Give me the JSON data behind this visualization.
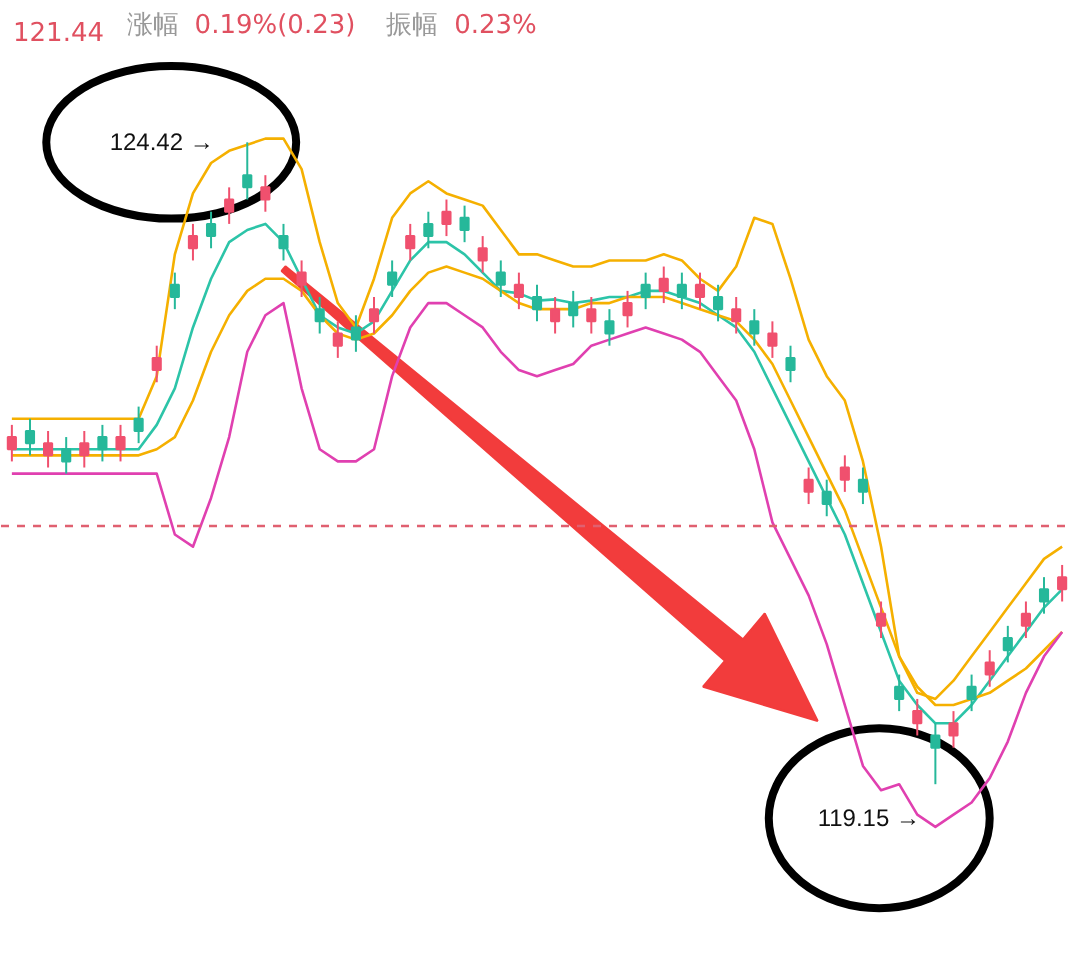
{
  "chart_data": {
    "type": "candlestick",
    "relative": false,
    "categories": [
      null,
      null,
      null,
      null,
      null,
      null,
      null,
      null,
      null,
      null,
      null,
      null,
      null,
      null,
      null,
      null,
      null,
      null,
      null,
      null,
      null,
      null,
      null,
      null,
      null,
      null,
      null,
      null,
      null,
      null,
      null,
      null,
      null,
      null,
      null,
      null,
      null,
      null,
      null,
      null,
      null,
      null,
      null,
      null,
      null,
      null,
      null,
      null,
      null,
      null,
      null,
      null,
      null,
      null,
      null,
      null,
      null,
      null,
      null
    ],
    "ohlc": [
      [
        121.9,
        122.1,
        121.8,
        122.0
      ],
      [
        122.05,
        122.15,
        121.85,
        121.95
      ],
      [
        121.85,
        122.05,
        121.75,
        121.95
      ],
      [
        121.9,
        122.0,
        121.7,
        121.8
      ],
      [
        121.85,
        122.05,
        121.75,
        121.95
      ],
      [
        122.0,
        122.1,
        121.8,
        121.9
      ],
      [
        121.9,
        122.1,
        121.8,
        122.0
      ],
      [
        122.15,
        122.25,
        121.95,
        122.05
      ],
      [
        122.55,
        122.75,
        122.45,
        122.65
      ],
      [
        123.25,
        123.35,
        123.05,
        123.15
      ],
      [
        123.55,
        123.75,
        123.45,
        123.65
      ],
      [
        123.75,
        123.85,
        123.55,
        123.65
      ],
      [
        123.85,
        124.05,
        123.75,
        123.95
      ],
      [
        124.15,
        124.42,
        123.95,
        124.05
      ],
      [
        123.95,
        124.15,
        123.85,
        124.05
      ],
      [
        123.65,
        123.75,
        123.45,
        123.55
      ],
      [
        123.25,
        123.45,
        123.15,
        123.35
      ],
      [
        123.05,
        123.15,
        122.85,
        122.95
      ],
      [
        122.75,
        122.95,
        122.65,
        122.85
      ],
      [
        122.9,
        123.0,
        122.7,
        122.8
      ],
      [
        122.95,
        123.15,
        122.85,
        123.05
      ],
      [
        123.35,
        123.45,
        123.15,
        123.25
      ],
      [
        123.55,
        123.75,
        123.45,
        123.65
      ],
      [
        123.75,
        123.85,
        123.55,
        123.65
      ],
      [
        123.75,
        123.95,
        123.65,
        123.85
      ],
      [
        123.8,
        123.9,
        123.6,
        123.7
      ],
      [
        123.45,
        123.65,
        123.35,
        123.55
      ],
      [
        123.35,
        123.45,
        123.15,
        123.25
      ],
      [
        123.15,
        123.35,
        123.05,
        123.25
      ],
      [
        123.15,
        123.25,
        122.95,
        123.05
      ],
      [
        122.95,
        123.15,
        122.85,
        123.05
      ],
      [
        123.1,
        123.2,
        122.9,
        123.0
      ],
      [
        122.95,
        123.15,
        122.85,
        123.05
      ],
      [
        122.95,
        123.05,
        122.75,
        122.85
      ],
      [
        123.0,
        123.2,
        122.9,
        123.1
      ],
      [
        123.25,
        123.35,
        123.05,
        123.15
      ],
      [
        123.2,
        123.4,
        123.1,
        123.3
      ],
      [
        123.25,
        123.35,
        123.05,
        123.15
      ],
      [
        123.15,
        123.35,
        123.05,
        123.25
      ],
      [
        123.15,
        123.25,
        122.95,
        123.05
      ],
      [
        122.95,
        123.15,
        122.85,
        123.05
      ],
      [
        122.95,
        123.05,
        122.75,
        122.85
      ],
      [
        122.75,
        122.95,
        122.65,
        122.85
      ],
      [
        122.65,
        122.75,
        122.45,
        122.55
      ],
      [
        121.55,
        121.75,
        121.45,
        121.65
      ],
      [
        121.55,
        121.65,
        121.35,
        121.45
      ],
      [
        121.65,
        121.85,
        121.55,
        121.75
      ],
      [
        121.65,
        121.75,
        121.45,
        121.55
      ],
      [
        120.45,
        120.65,
        120.35,
        120.55
      ],
      [
        119.95,
        120.05,
        119.75,
        119.85
      ],
      [
        119.65,
        119.85,
        119.55,
        119.75
      ],
      [
        119.55,
        119.65,
        119.15,
        119.45
      ],
      [
        119.55,
        119.75,
        119.45,
        119.65
      ],
      [
        119.95,
        120.05,
        119.75,
        119.85
      ],
      [
        120.05,
        120.25,
        119.95,
        120.15
      ],
      [
        120.35,
        120.45,
        120.15,
        120.25
      ],
      [
        120.45,
        120.65,
        120.35,
        120.55
      ],
      [
        120.75,
        120.85,
        120.55,
        120.65
      ],
      [
        120.75,
        120.95,
        120.65,
        120.85
      ]
    ],
    "colors": [
      "#f0506e",
      "#26b89a",
      "#f0506e",
      "#26b89a",
      "#f0506e",
      "#26b89a",
      "#f0506e",
      "#26b89a",
      "#f0506e",
      "#26b89a",
      "#f0506e",
      "#26b89a",
      "#f0506e",
      "#26b89a",
      "#f0506e",
      "#26b89a",
      "#f0506e",
      "#26b89a",
      "#f0506e",
      "#26b89a",
      "#f0506e",
      "#26b89a",
      "#f0506e",
      "#26b89a",
      "#f0506e",
      "#26b89a",
      "#f0506e",
      "#26b89a",
      "#f0506e",
      "#26b89a",
      "#f0506e",
      "#26b89a",
      "#f0506e",
      "#26b89a",
      "#f0506e",
      "#26b89a",
      "#f0506e",
      "#26b89a",
      "#f0506e",
      "#26b89a",
      "#f0506e",
      "#26b89a",
      "#f0506e",
      "#26b89a",
      "#f0506e",
      "#26b89a",
      "#f0506e",
      "#26b89a",
      "#f0506e",
      "#26b89a",
      "#f0506e",
      "#26b89a",
      "#f0506e",
      "#26b89a",
      "#f0506e",
      "#26b89a",
      "#f0506e",
      "#26b89a",
      "#f0506e"
    ],
    "series": [
      {
        "type": "line",
        "color": "#f5b000",
        "values": [
          122.15,
          122.15,
          122.15,
          122.15,
          122.15,
          122.15,
          122.15,
          122.15,
          122.5,
          123.5,
          124.0,
          124.25,
          124.35,
          124.4,
          124.45,
          124.45,
          124.2,
          123.6,
          123.1,
          122.9,
          123.3,
          123.8,
          124.0,
          124.1,
          124.0,
          123.95,
          123.9,
          123.7,
          123.5,
          123.5,
          123.45,
          123.4,
          123.4,
          123.45,
          123.45,
          123.45,
          123.5,
          123.45,
          123.3,
          123.2,
          123.4,
          123.8,
          123.75,
          123.3,
          122.8,
          122.5,
          122.3,
          121.8,
          121.1,
          120.2,
          119.9,
          119.85,
          120.0,
          120.2,
          120.4,
          120.6,
          120.8,
          121.0,
          121.1
        ]
      },
      {
        "type": "line",
        "color": "#2cc4a8",
        "values": [
          121.9,
          121.9,
          121.9,
          121.9,
          121.9,
          121.9,
          121.9,
          121.9,
          122.1,
          122.4,
          122.9,
          123.3,
          123.6,
          123.7,
          123.75,
          123.6,
          123.3,
          123.0,
          122.9,
          122.85,
          122.95,
          123.2,
          123.45,
          123.6,
          123.6,
          123.5,
          123.35,
          123.2,
          123.18,
          123.12,
          123.13,
          123.1,
          123.12,
          123.15,
          123.15,
          123.2,
          123.2,
          123.15,
          123.1,
          123.0,
          122.9,
          122.7,
          122.4,
          122.1,
          121.8,
          121.5,
          121.2,
          120.8,
          120.4,
          120.0,
          119.8,
          119.65,
          119.65,
          119.8,
          120.0,
          120.2,
          120.4,
          120.6,
          120.75
        ]
      },
      {
        "type": "line",
        "color": "#f5b000",
        "values": [
          121.85,
          121.85,
          121.85,
          121.85,
          121.85,
          121.85,
          121.85,
          121.85,
          121.9,
          122.0,
          122.3,
          122.7,
          123.0,
          123.2,
          123.3,
          123.3,
          123.2,
          123.0,
          122.85,
          122.8,
          122.85,
          123.0,
          123.2,
          123.35,
          123.4,
          123.35,
          123.3,
          123.2,
          123.1,
          123.05,
          123.05,
          123.05,
          123.1,
          123.1,
          123.15,
          123.15,
          123.15,
          123.1,
          123.05,
          123.0,
          122.95,
          122.8,
          122.6,
          122.3,
          122.0,
          121.7,
          121.4,
          121.0,
          120.6,
          120.2,
          119.95,
          119.8,
          119.8,
          119.85,
          119.9,
          120.0,
          120.1,
          120.25,
          120.4
        ]
      },
      {
        "type": "line",
        "color": "#e040b0",
        "values": [
          121.7,
          121.7,
          121.7,
          121.7,
          121.7,
          121.7,
          121.7,
          121.7,
          121.7,
          121.2,
          121.1,
          121.5,
          122.0,
          122.7,
          123.0,
          123.1,
          122.4,
          121.9,
          121.8,
          121.8,
          121.9,
          122.5,
          122.9,
          123.1,
          123.1,
          123.0,
          122.9,
          122.7,
          122.55,
          122.5,
          122.55,
          122.6,
          122.75,
          122.8,
          122.85,
          122.9,
          122.85,
          122.8,
          122.7,
          122.5,
          122.3,
          121.9,
          121.3,
          121.0,
          120.7,
          120.3,
          119.8,
          119.3,
          119.1,
          119.15,
          118.9,
          118.8,
          118.9,
          119.0,
          119.2,
          119.5,
          119.9,
          120.2,
          120.4
        ]
      }
    ],
    "ylim": [
      117.6,
      125.58
    ],
    "ref_lines": [
      {
        "axis": "y",
        "value": 121.27,
        "color": "#e06070",
        "line_style": "dashed"
      }
    ],
    "annotations": [
      "121.44",
      "涨幅",
      "0.19%(0.23)",
      "振幅",
      "0.23%",
      "124.42 →",
      "119.15 →"
    ],
    "tick_labels": false,
    "grid": false
  }
}
